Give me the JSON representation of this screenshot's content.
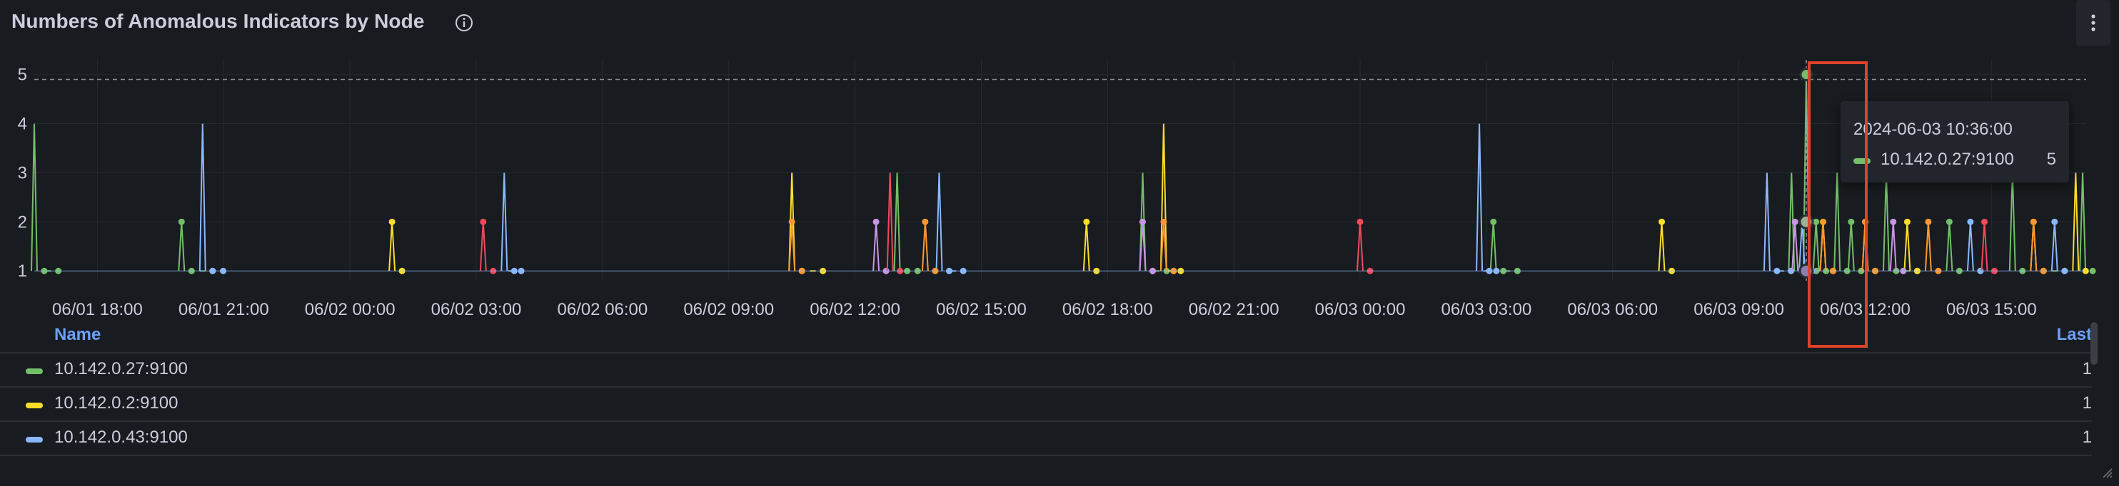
{
  "panel": {
    "title": "Numbers of Anomalous Indicators by Node",
    "info_icon": "info-circle-icon",
    "menu_icon": "vertical-ellipsis-icon"
  },
  "chart_data": {
    "type": "line",
    "xlabel": "",
    "ylabel": "",
    "x_range": [
      "2024-06-01 16:30",
      "2024-06-03 17:15"
    ],
    "ylim": [
      0.8,
      5.3
    ],
    "y_ticks": [
      "1",
      "2",
      "3",
      "4",
      "5"
    ],
    "x_ticks": [
      "06/01 18:00",
      "06/01 21:00",
      "06/02 00:00",
      "06/02 03:00",
      "06/02 06:00",
      "06/02 09:00",
      "06/02 12:00",
      "06/02 15:00",
      "06/02 18:00",
      "06/02 21:00",
      "06/03 00:00",
      "06/03 03:00",
      "06/03 06:00",
      "06/03 09:00",
      "06/03 12:00",
      "06/03 15:00"
    ],
    "grid": true,
    "threshold": 4.9,
    "series": [
      {
        "name": "10.142.0.27:9100",
        "color": "#73bf69",
        "points": [
          [
            "06/01 16:30",
            4
          ],
          [
            "06/01 16:50",
            1
          ],
          [
            "06/01 20:00",
            2
          ],
          [
            "06/01 20:30",
            1
          ],
          [
            "06/02 13:00",
            3
          ],
          [
            "06/02 13:15",
            1
          ],
          [
            "06/02 18:50",
            3
          ],
          [
            "06/02 19:10",
            1
          ],
          [
            "06/03 03:10",
            2
          ],
          [
            "06/03 03:30",
            1
          ],
          [
            "06/03 10:15",
            3
          ],
          [
            "06/03 10:36",
            5
          ],
          [
            "06/03 10:50",
            2
          ],
          [
            "06/03 11:20",
            3
          ],
          [
            "06/03 11:40",
            2
          ],
          [
            "06/03 12:30",
            3
          ],
          [
            "06/03 13:00",
            1
          ],
          [
            "06/03 14:00",
            2
          ],
          [
            "06/03 15:30",
            3
          ],
          [
            "06/03 16:30",
            1
          ],
          [
            "06/03 17:10",
            3
          ]
        ],
        "last": "1"
      },
      {
        "name": "10.142.0.2:9100",
        "color": "#fade2a",
        "points": [
          [
            "06/02 01:00",
            2
          ],
          [
            "06/02 10:30",
            3
          ],
          [
            "06/02 11:00",
            1
          ],
          [
            "06/02 17:30",
            2
          ],
          [
            "06/02 19:20",
            4
          ],
          [
            "06/02 19:30",
            1
          ],
          [
            "06/03 07:10",
            2
          ],
          [
            "06/03 11:00",
            2
          ],
          [
            "06/03 13:00",
            2
          ],
          [
            "06/03 16:00",
            2
          ],
          [
            "06/03 17:00",
            3
          ]
        ],
        "last": "1"
      },
      {
        "name": "10.142.0.43:9100",
        "color": "#8ab8ff",
        "points": [
          [
            "06/01 20:30",
            4
          ],
          [
            "06/01 20:45",
            1
          ],
          [
            "06/02 03:40",
            3
          ],
          [
            "06/02 03:50",
            1
          ],
          [
            "06/02 14:00",
            3
          ],
          [
            "06/02 14:20",
            1
          ],
          [
            "06/03 02:50",
            4
          ],
          [
            "06/03 03:00",
            1
          ],
          [
            "06/03 09:40",
            3
          ],
          [
            "06/03 10:00",
            1
          ],
          [
            "06/03 10:30",
            2
          ],
          [
            "06/03 12:00",
            2
          ],
          [
            "06/03 14:30",
            2
          ],
          [
            "06/03 16:30",
            2
          ]
        ],
        "last": "1"
      },
      {
        "name": "",
        "color": "#ff9830",
        "points": [
          [
            "06/02 10:30",
            2
          ],
          [
            "06/02 13:40",
            2
          ],
          [
            "06/02 19:20",
            2
          ],
          [
            "06/03 11:00",
            2
          ],
          [
            "06/03 12:00",
            2
          ],
          [
            "06/03 13:30",
            2
          ],
          [
            "06/03 16:00",
            2
          ]
        ]
      },
      {
        "name": "",
        "color": "#ca95e5",
        "points": [
          [
            "06/02 12:30",
            2
          ],
          [
            "06/02 18:50",
            2
          ],
          [
            "06/03 10:20",
            2
          ],
          [
            "06/03 12:40",
            2
          ]
        ]
      },
      {
        "name": "",
        "color": "#f2495c",
        "points": [
          [
            "06/02 03:10",
            2
          ],
          [
            "06/02 12:50",
            3
          ],
          [
            "06/03 00:00",
            2
          ],
          [
            "06/03 14:50",
            2
          ]
        ]
      }
    ]
  },
  "tooltip": {
    "time": "2024-06-03 10:36:00",
    "series_name": "10.142.0.27:9100",
    "value": "5",
    "color": "#73bf69"
  },
  "legend": {
    "col_name": "Name",
    "col_last": "Last",
    "rows": [
      {
        "name": "10.142.0.27:9100",
        "last": "1",
        "color": "#73bf69"
      },
      {
        "name": "10.142.0.2:9100",
        "last": "1",
        "color": "#fade2a"
      },
      {
        "name": "10.142.0.43:9100",
        "last": "1",
        "color": "#8ab8ff"
      }
    ]
  }
}
